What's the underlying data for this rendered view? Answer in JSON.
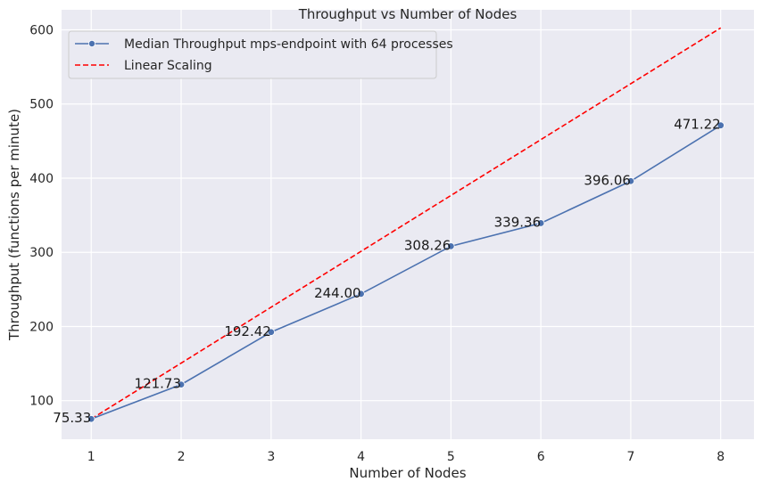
{
  "chart_data": {
    "type": "line",
    "title": "Throughput vs Number of Nodes",
    "xlabel": "Number of Nodes",
    "ylabel": "Throughput (functions per minute)",
    "x": [
      1,
      2,
      3,
      4,
      5,
      6,
      7,
      8
    ],
    "x_ticks": [
      "1",
      "2",
      "3",
      "4",
      "5",
      "6",
      "7",
      "8"
    ],
    "y_ticks": [
      "100",
      "200",
      "300",
      "400",
      "500",
      "600"
    ],
    "xlim": [
      0.67,
      8.37
    ],
    "ylim": [
      48,
      627
    ],
    "grid": true,
    "legend_position": "top-left",
    "series": [
      {
        "name": "Median Throughput mps-endpoint with 64 processes",
        "style": "solid-marker",
        "color": "#4c72b0",
        "values": [
          75.33,
          121.73,
          192.42,
          244.0,
          308.26,
          339.36,
          396.06,
          471.22
        ],
        "labels": [
          "75.33",
          "121.73",
          "192.42",
          "244.00",
          "308.26",
          "339.36",
          "396.06",
          "471.22"
        ]
      },
      {
        "name": "Linear Scaling",
        "style": "dashed",
        "color": "#ff0000",
        "values": [
          75.33,
          150.66,
          225.99,
          301.32,
          376.65,
          451.98,
          527.31,
          602.64
        ]
      }
    ]
  }
}
